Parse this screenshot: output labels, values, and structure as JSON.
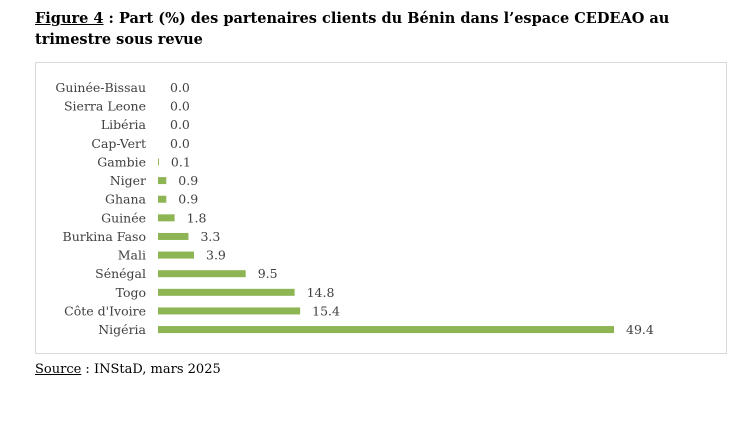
{
  "title": {
    "figure_label": "Figure 4",
    "text": " : Part (%) des partenaires clients du Bénin dans l’espace CEDEAO au trimestre sous revue"
  },
  "source": {
    "label": "Source",
    "text": " : INStaD, mars 2025"
  },
  "chart_data": {
    "type": "bar",
    "orientation": "horizontal",
    "categories": [
      "Guinée-Bissau",
      "Sierra Leone",
      "Libéria",
      "Cap-Vert",
      "Gambie",
      "Niger",
      "Ghana",
      "Guinée",
      "Burkina Faso",
      "Mali",
      "Sénégal",
      "Togo",
      "Côte d'Ivoire",
      "Nigéria"
    ],
    "values": [
      0.0,
      0.0,
      0.0,
      0.0,
      0.1,
      0.9,
      0.9,
      1.8,
      3.3,
      3.9,
      9.5,
      14.8,
      15.4,
      49.4
    ],
    "value_labels": [
      "0.0",
      "0.0",
      "0.0",
      "0.0",
      "0.1",
      "0.9",
      "0.9",
      "1.8",
      "3.3",
      "3.9",
      "9.5",
      "14.8",
      "15.4",
      "49.4"
    ],
    "bar_color": "#8db553",
    "data_labels": true,
    "grid": false,
    "legend": "none",
    "xlabel": "",
    "ylabel": ""
  }
}
